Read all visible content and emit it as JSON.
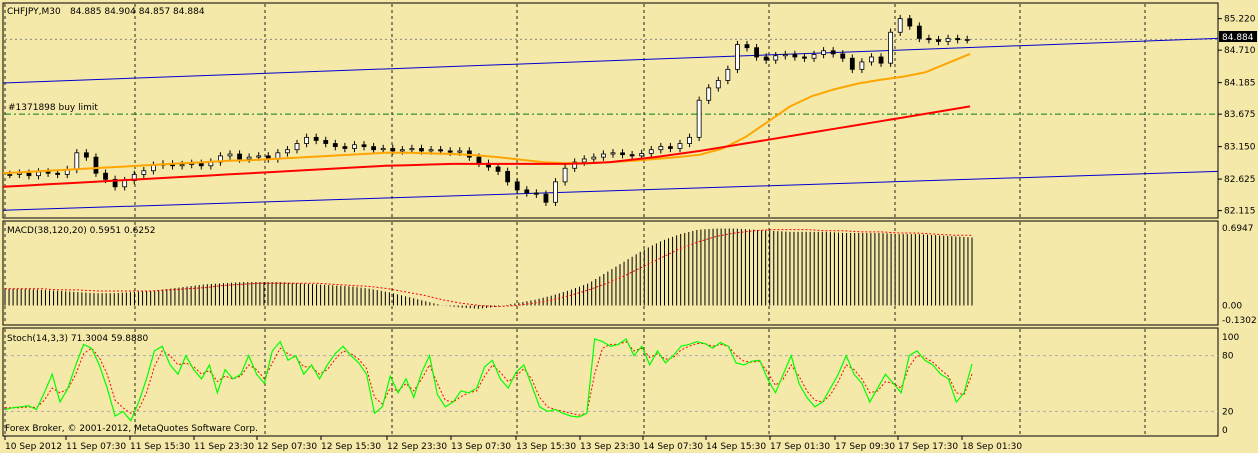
{
  "chart_data": [
    {
      "type": "candlestick",
      "panel": "price",
      "title": "CHFJPY,M30",
      "ohlc_label": "84.885 84.904 84.857 84.884",
      "y_ticks": [
        "85.220",
        "84.710",
        "84.185",
        "83.675",
        "83.150",
        "82.625",
        "82.115"
      ],
      "y_range": [
        82.06,
        85.36
      ],
      "current_price": "84.884",
      "order_label": "#1371898 buy limit",
      "order_level": 83.675,
      "close_series": [
        82.7,
        82.72,
        82.68,
        82.74,
        82.72,
        82.7,
        82.78,
        83.05,
        82.98,
        82.72,
        82.62,
        82.5,
        82.6,
        82.7,
        82.76,
        82.85,
        82.87,
        82.84,
        82.86,
        82.88,
        82.84,
        82.9,
        83.0,
        83.03,
        82.95,
        82.98,
        83.0,
        82.95,
        83.05,
        83.1,
        83.2,
        83.3,
        83.25,
        83.2,
        83.15,
        83.12,
        83.18,
        83.15,
        83.1,
        83.12,
        83.08,
        83.1,
        83.12,
        83.08,
        83.1,
        83.08,
        83.06,
        83.08,
        82.98,
        82.88,
        82.82,
        82.75,
        82.58,
        82.45,
        82.4,
        82.38,
        82.25,
        82.58,
        82.8,
        82.9,
        82.95,
        82.98,
        83.03,
        83.05,
        83.02,
        83.0,
        83.04,
        83.1,
        83.15,
        83.12,
        83.2,
        83.3,
        83.9,
        84.1,
        84.22,
        84.4,
        84.8,
        84.75,
        84.6,
        84.55,
        84.62,
        84.64,
        84.6,
        84.58,
        84.64,
        84.7,
        84.65,
        84.58,
        84.4,
        84.52,
        84.6,
        84.5,
        85.0,
        85.22,
        85.1,
        84.9,
        84.88,
        84.85,
        84.9,
        84.88,
        84.884
      ],
      "ma_orange": [
        82.72,
        82.74,
        82.76,
        82.78,
        82.8,
        82.82,
        82.84,
        82.86,
        82.88,
        82.9,
        82.92,
        82.93,
        82.95,
        82.97,
        82.99,
        83.01,
        83.03,
        83.05,
        83.05,
        83.04,
        83.03,
        83.01,
        82.98,
        82.94,
        82.9,
        82.88,
        82.88,
        82.9,
        82.92,
        82.95,
        82.98,
        83.02,
        83.12,
        83.3,
        83.55,
        83.8,
        83.97,
        84.08,
        84.17,
        84.23,
        84.28,
        84.35,
        84.5,
        84.65
      ],
      "ma_red": [
        82.5,
        82.52,
        82.54,
        82.56,
        82.58,
        82.6,
        82.62,
        82.64,
        82.66,
        82.68,
        82.7,
        82.72,
        82.74,
        82.76,
        82.78,
        82.8,
        82.82,
        82.84,
        82.85,
        82.86,
        82.87,
        82.87,
        82.87,
        82.87,
        82.87,
        82.87,
        82.88,
        82.9,
        82.94,
        82.98,
        83.03,
        83.08,
        83.14,
        83.2,
        83.26,
        83.32,
        83.38,
        83.44,
        83.5,
        83.56,
        83.62,
        83.68,
        83.74,
        83.8
      ],
      "x_labels": [
        "10 Sep 2012",
        "11 Sep 07:30",
        "11 Sep 15:30",
        "11 Sep 23:30",
        "12 Sep 07:30",
        "12 Sep 15:30",
        "12 Sep 23:30",
        "13 Sep 07:30",
        "13 Sep 15:30",
        "13 Sep 23:30",
        "14 Sep 07:30",
        "14 Sep 15:30",
        "17 Sep 01:30",
        "17 Sep 09:30",
        "17 Sep 17:30",
        "18 Sep 01:30"
      ]
    },
    {
      "type": "bar",
      "panel": "macd",
      "title": "MACD(38,120,20) 0.5951 0.6252",
      "y_ticks": [
        "0.6947",
        "0.00",
        "-0.1302"
      ],
      "y_range": [
        -0.1302,
        0.6947
      ],
      "histogram": [
        0.15,
        0.15,
        0.14,
        0.13,
        0.12,
        0.11,
        0.11,
        0.12,
        0.13,
        0.15,
        0.17,
        0.19,
        0.2,
        0.21,
        0.21,
        0.21,
        0.2,
        0.19,
        0.18,
        0.17,
        0.15,
        0.12,
        0.08,
        0.04,
        0.0,
        -0.02,
        -0.03,
        -0.01,
        0.02,
        0.05,
        0.09,
        0.14,
        0.2,
        0.3,
        0.4,
        0.5,
        0.58,
        0.64,
        0.68,
        0.69,
        0.69,
        0.68,
        0.67,
        0.66,
        0.66,
        0.66,
        0.65,
        0.65,
        0.65,
        0.64,
        0.64,
        0.63,
        0.62,
        0.61
      ],
      "signal": [
        0.15,
        0.15,
        0.15,
        0.14,
        0.14,
        0.13,
        0.13,
        0.13,
        0.13,
        0.14,
        0.15,
        0.16,
        0.18,
        0.19,
        0.2,
        0.2,
        0.2,
        0.2,
        0.19,
        0.18,
        0.17,
        0.15,
        0.12,
        0.09,
        0.05,
        0.02,
        0.0,
        -0.01,
        0.0,
        0.02,
        0.05,
        0.09,
        0.14,
        0.2,
        0.27,
        0.35,
        0.43,
        0.51,
        0.57,
        0.62,
        0.65,
        0.67,
        0.68,
        0.68,
        0.68,
        0.67,
        0.67,
        0.66,
        0.66,
        0.65,
        0.65,
        0.64,
        0.63,
        0.63
      ]
    },
    {
      "type": "line",
      "panel": "stochastic",
      "title": "Stoch(14,3,3) 71.3004 59.8880",
      "y_ticks": [
        "100",
        "80",
        "20",
        "0"
      ],
      "y_range": [
        0,
        100
      ],
      "main": [
        22,
        24,
        25,
        26,
        22,
        40,
        60,
        30,
        45,
        70,
        92,
        88,
        70,
        45,
        15,
        20,
        10,
        30,
        55,
        85,
        90,
        70,
        60,
        80,
        65,
        55,
        70,
        40,
        65,
        55,
        60,
        80,
        60,
        50,
        85,
        95,
        75,
        80,
        60,
        70,
        55,
        70,
        82,
        90,
        80,
        72,
        60,
        18,
        25,
        58,
        40,
        55,
        35,
        62,
        80,
        38,
        25,
        30,
        42,
        40,
        45,
        68,
        75,
        55,
        45,
        62,
        70,
        48,
        25,
        20,
        22,
        18,
        15,
        14,
        18,
        98,
        95,
        90,
        92,
        98,
        80,
        90,
        70,
        85,
        72,
        80,
        90,
        92,
        95,
        93,
        88,
        94,
        90,
        72,
        70,
        74,
        75,
        55,
        40,
        60,
        80,
        50,
        35,
        25,
        30,
        45,
        60,
        80,
        60,
        50,
        30,
        45,
        60,
        50,
        40,
        80,
        85,
        75,
        70,
        60,
        55,
        30,
        40,
        71
      ],
      "signal": [
        24,
        24,
        24,
        25,
        24,
        32,
        45,
        40,
        44,
        60,
        82,
        88,
        78,
        60,
        32,
        24,
        18,
        22,
        40,
        68,
        85,
        80,
        70,
        72,
        68,
        60,
        64,
        52,
        58,
        55,
        58,
        70,
        65,
        55,
        72,
        88,
        82,
        78,
        68,
        68,
        60,
        65,
        76,
        85,
        82,
        76,
        66,
        35,
        28,
        45,
        42,
        50,
        42,
        55,
        70,
        50,
        32,
        30,
        36,
        40,
        42,
        58,
        70,
        62,
        52,
        58,
        66,
        55,
        35,
        25,
        22,
        20,
        18,
        16,
        18,
        60,
        88,
        92,
        92,
        95,
        85,
        88,
        78,
        82,
        76,
        78,
        86,
        90,
        93,
        93,
        90,
        92,
        90,
        80,
        74,
        73,
        74,
        62,
        48,
        55,
        70,
        58,
        42,
        32,
        30,
        38,
        52,
        70,
        65,
        55,
        40,
        42,
        52,
        50,
        45,
        68,
        80,
        78,
        73,
        65,
        58,
        40,
        38,
        60
      ]
    }
  ],
  "footer": {
    "copyright": "Forex Broker, © 2001-2012, MetaQuotes Software Corp."
  },
  "colors": {
    "background": "#F5E9A9",
    "grid": "#000000",
    "candle": "#000000",
    "ma_orange": "#FFA500",
    "ma_red": "#FF0000",
    "channel": "#0000CD",
    "order_line": "#008000",
    "stoch_main": "#00FF00",
    "stoch_signal": "#FF0000",
    "price_tag": "#000000"
  }
}
